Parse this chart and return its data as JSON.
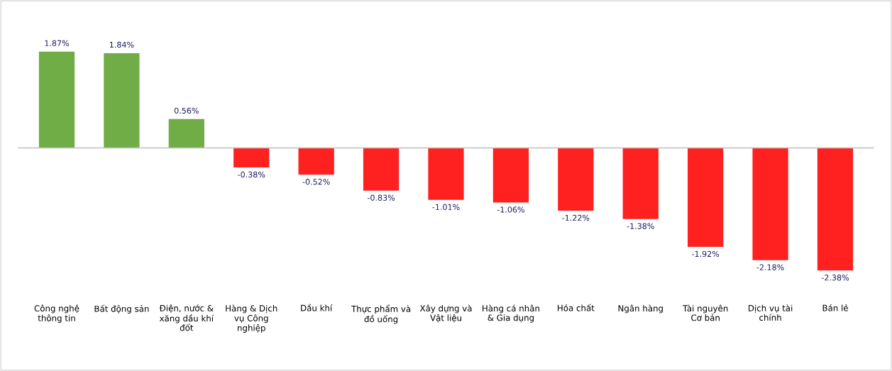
{
  "chart_data": {
    "type": "bar",
    "categories": [
      "Công nghệ thông tin",
      "Bất động sản",
      "Điện, nước & xăng dầu khí đốt",
      "Hàng & Dịch vụ Công nghiệp",
      "Dầu khí",
      "Thực phẩm và đồ uống",
      "Xây dựng và Vật liệu",
      "Hàng cá nhân & Gia dụng",
      "Hóa chất",
      "Ngân hàng",
      "Tài nguyên Cơ bản",
      "Dịch vụ tài chính",
      "Bán lẻ"
    ],
    "values": [
      1.87,
      1.84,
      0.56,
      -0.38,
      -0.52,
      -0.83,
      -1.01,
      -1.06,
      -1.22,
      -1.38,
      -1.92,
      -2.18,
      -2.38
    ],
    "colors": [
      "#70ad47",
      "#70ad47",
      "#70ad47",
      "#ff2020",
      "#ff2020",
      "#ff2020",
      "#ff2020",
      "#ff2020",
      "#ff2020",
      "#ff2020",
      "#ff2020",
      "#ff2020",
      "#ff2020"
    ],
    "value_labels": [
      "1.87%",
      "1.84%",
      "0.56%",
      "-0.38%",
      "-0.52%",
      "-0.83%",
      "-1.01%",
      "-1.06%",
      "-1.22%",
      "-1.38%",
      "-1.92%",
      "-2.18%",
      "-2.38%"
    ]
  }
}
